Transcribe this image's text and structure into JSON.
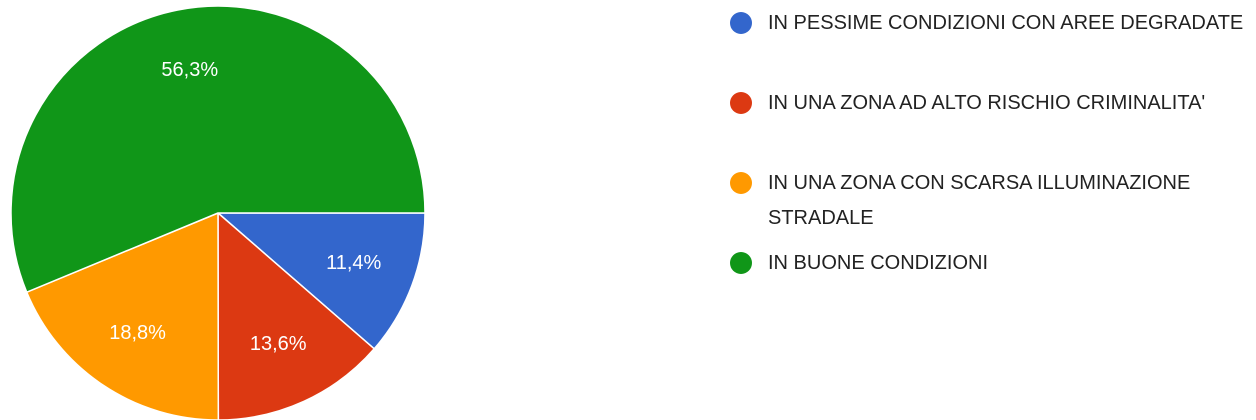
{
  "chart_data": {
    "type": "pie",
    "categories": [
      "IN PESSIME CONDIZIONI CON AREE DEGRADATE",
      "IN UNA ZONA AD ALTO RISCHIO CRIMINALITA'",
      "IN UNA ZONA CON SCARSA ILLUMINAZIONE STRADALE",
      "IN BUONE CONDIZIONI"
    ],
    "values": [
      11.4,
      13.6,
      18.8,
      56.3
    ],
    "value_labels": [
      "11,4%",
      "13,6%",
      "18,8%",
      "56,3%"
    ],
    "colors": [
      "#3366cc",
      "#dc3912",
      "#ff9900",
      "#109618"
    ],
    "legend": "right"
  }
}
